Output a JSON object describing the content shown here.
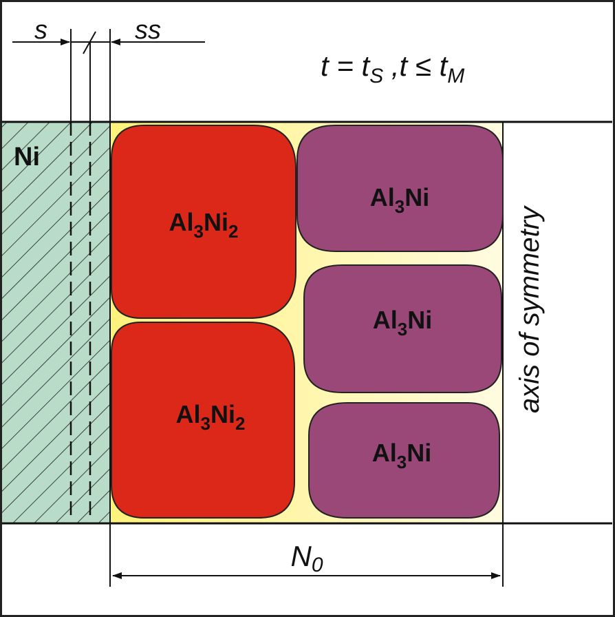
{
  "labels": {
    "s": "s",
    "ss": "ss",
    "formula_t": "t = t",
    "formula_s": "S",
    "formula_mid": " ,t ≤ t",
    "formula_m": "M",
    "ni": "Ni",
    "axis": "axis of symmetry",
    "n0": "N",
    "n0_sub": "0"
  },
  "phases": {
    "al3ni2_top": {
      "base": "Al",
      "sub1": "3",
      "mid": "Ni",
      "sub2": "2"
    },
    "al3ni2_bottom": {
      "base": "Al",
      "sub1": "3",
      "mid": "Ni",
      "sub2": "2"
    },
    "al3ni_top": {
      "base": "Al",
      "sub1": "3",
      "mid": "Ni"
    },
    "al3ni_middle": {
      "base": "Al",
      "sub1": "3",
      "mid": "Ni"
    },
    "al3ni_bottom": {
      "base": "Al",
      "sub1": "3",
      "mid": "Ni"
    }
  },
  "colors": {
    "ni_fill": "#b8dcc8",
    "matrix_yellow": "#fff27a",
    "matrix_light": "#fffbe0",
    "al3ni2_red": "#dc2819",
    "al3ni_purple": "#9a4878"
  }
}
